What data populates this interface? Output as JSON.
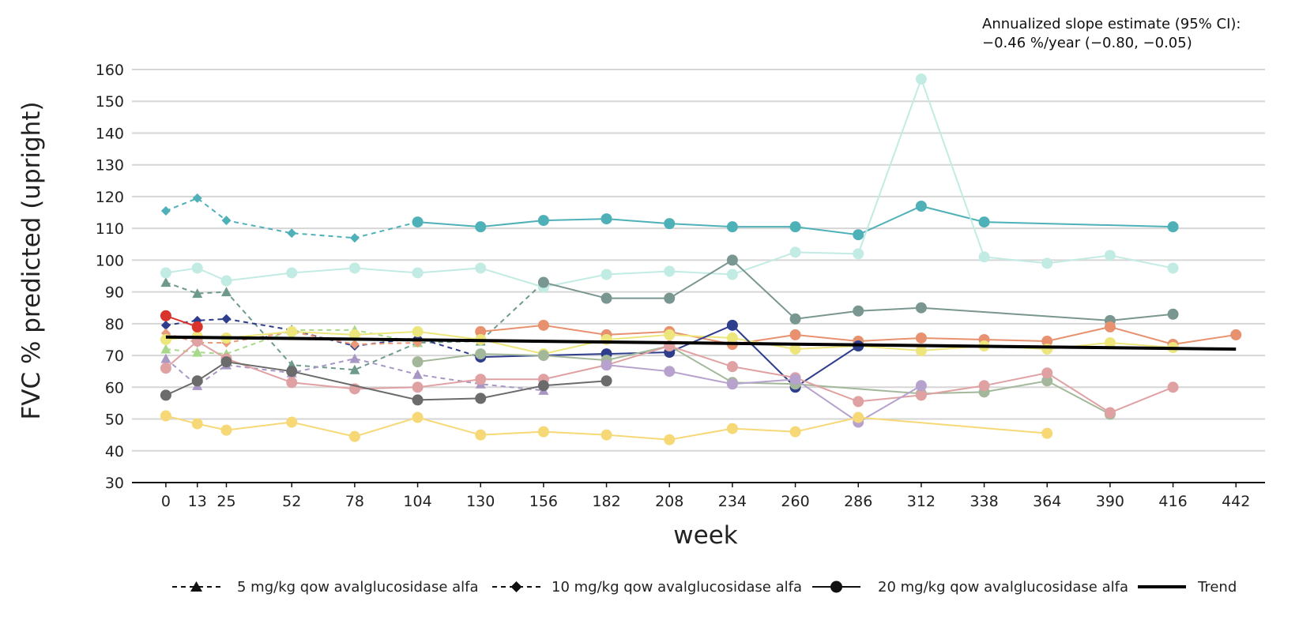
{
  "chart_data": {
    "type": "line",
    "title": "",
    "xlabel": "week",
    "ylabel": "FVC % predicted (upright)",
    "x_ticks": [
      0,
      13,
      25,
      52,
      78,
      104,
      130,
      156,
      182,
      208,
      234,
      260,
      286,
      312,
      338,
      364,
      390,
      416,
      442
    ],
    "y_ticks": [
      30,
      40,
      50,
      60,
      70,
      80,
      90,
      100,
      110,
      120,
      130,
      140,
      150,
      160
    ],
    "xlim": [
      -14,
      454
    ],
    "ylim": [
      30,
      160
    ],
    "grid": "horizontal",
    "legend_position": "bottom",
    "annotation": {
      "line1": "Annualized slope estimate (95% CI):",
      "line2": "−0.46 %/year (−0.80, −0.05)"
    },
    "legend": [
      {
        "label": "5 mg/kg qow avalglucosidase alfa",
        "marker": "triangle",
        "dash": "dashed"
      },
      {
        "label": "10 mg/kg qow avalglucosidase alfa",
        "marker": "diamond",
        "dash": "dashed"
      },
      {
        "label": "20 mg/kg qow avalglucosidase alfa",
        "marker": "circle",
        "dash": "solid"
      },
      {
        "label": "Trend",
        "marker": "none",
        "dash": "solid"
      }
    ],
    "trend": {
      "color": "#000000",
      "points": [
        [
          0,
          75.8
        ],
        [
          442,
          72.0
        ]
      ]
    },
    "series": [
      {
        "group": "5 mg/kg",
        "color": "#6e9a8c",
        "marker": "triangle",
        "dash": "dashed",
        "points": [
          [
            0,
            93
          ],
          [
            13,
            89.5
          ],
          [
            25,
            90
          ],
          [
            52,
            67
          ],
          [
            78,
            65.5
          ],
          [
            104,
            74
          ],
          [
            130,
            74.5
          ],
          [
            156,
            93
          ]
        ]
      },
      {
        "group": "5 mg/kg",
        "color": "#a8d88a",
        "marker": "triangle",
        "dash": "dashed",
        "points": [
          [
            0,
            72
          ],
          [
            13,
            71
          ],
          [
            25,
            70.5
          ],
          [
            52,
            78
          ],
          [
            78,
            78
          ],
          [
            104,
            74
          ]
        ]
      },
      {
        "group": "5 mg/kg",
        "color": "#a896c4",
        "marker": "triangle",
        "dash": "dashed",
        "points": [
          [
            0,
            69
          ],
          [
            13,
            60.5
          ],
          [
            25,
            67
          ],
          [
            52,
            64.5
          ],
          [
            78,
            69
          ],
          [
            104,
            64
          ],
          [
            130,
            61
          ],
          [
            156,
            59
          ]
        ]
      },
      {
        "group": "10 mg/kg",
        "color": "#4fb1b8",
        "marker": "diamond",
        "dash": "dashed",
        "points": [
          [
            0,
            115.5
          ],
          [
            13,
            119.5
          ],
          [
            25,
            112.5
          ],
          [
            52,
            108.5
          ],
          [
            78,
            107
          ],
          [
            104,
            112
          ]
        ]
      },
      {
        "group": "10 mg/kg",
        "color": "#2e3d8c",
        "marker": "diamond",
        "dash": "dashed",
        "points": [
          [
            0,
            79.5
          ],
          [
            13,
            81
          ],
          [
            25,
            81.5
          ],
          [
            52,
            78
          ],
          [
            78,
            73
          ],
          [
            104,
            75.5
          ],
          [
            130,
            69.5
          ]
        ]
      },
      {
        "group": "10 mg/kg",
        "color": "#e89a7a",
        "marker": "diamond",
        "dash": "dashed",
        "points": [
          [
            0,
            77
          ],
          [
            13,
            74
          ],
          [
            25,
            74
          ],
          [
            52,
            77.5
          ],
          [
            78,
            73.5
          ],
          [
            104,
            74
          ]
        ]
      },
      {
        "group": "20 mg/kg",
        "color": "#4fb1b8",
        "marker": "circle",
        "dash": "solid",
        "points": [
          [
            104,
            112
          ],
          [
            130,
            110.5
          ],
          [
            156,
            112.5
          ],
          [
            182,
            113
          ],
          [
            208,
            111.5
          ],
          [
            234,
            110.5
          ],
          [
            260,
            110.5
          ],
          [
            286,
            108
          ],
          [
            312,
            117
          ],
          [
            338,
            112
          ],
          [
            416,
            110.5
          ]
        ]
      },
      {
        "group": "20 mg/kg",
        "color": "#c2ebe4",
        "marker": "circle",
        "dash": "solid",
        "points": [
          [
            0,
            96
          ],
          [
            13,
            97.5
          ],
          [
            25,
            93.5
          ],
          [
            52,
            96
          ],
          [
            78,
            97.5
          ],
          [
            104,
            96
          ],
          [
            130,
            97.5
          ],
          [
            156,
            91.5
          ],
          [
            182,
            95.5
          ],
          [
            208,
            96.5
          ],
          [
            234,
            95.5
          ],
          [
            260,
            102.5
          ],
          [
            286,
            102
          ],
          [
            312,
            157
          ],
          [
            338,
            101
          ],
          [
            364,
            99
          ],
          [
            390,
            101.5
          ],
          [
            416,
            97.5
          ]
        ]
      },
      {
        "group": "20 mg/kg",
        "color": "#7a9690",
        "marker": "circle",
        "dash": "solid",
        "points": [
          [
            156,
            93
          ],
          [
            182,
            88
          ],
          [
            208,
            88
          ],
          [
            234,
            100
          ],
          [
            260,
            81.5
          ],
          [
            286,
            84
          ],
          [
            312,
            85
          ],
          [
            390,
            81
          ],
          [
            416,
            83
          ]
        ]
      },
      {
        "group": "20 mg/kg",
        "color": "#e8916e",
        "marker": "circle",
        "dash": "solid",
        "points": [
          [
            130,
            77.5
          ],
          [
            156,
            79.5
          ],
          [
            182,
            76.5
          ],
          [
            208,
            77.5
          ],
          [
            234,
            73.5
          ],
          [
            260,
            76.5
          ],
          [
            286,
            74.5
          ],
          [
            312,
            75.5
          ],
          [
            338,
            75
          ],
          [
            364,
            74.5
          ],
          [
            390,
            79
          ],
          [
            416,
            73.5
          ],
          [
            442,
            76.5
          ]
        ]
      },
      {
        "group": "20 mg/kg",
        "color": "#ede67c",
        "marker": "circle",
        "dash": "solid",
        "points": [
          [
            0,
            75
          ],
          [
            13,
            76
          ],
          [
            25,
            75.5
          ],
          [
            52,
            77.5
          ],
          [
            78,
            76.5
          ],
          [
            104,
            77.5
          ],
          [
            130,
            75
          ],
          [
            156,
            70.5
          ],
          [
            182,
            75
          ],
          [
            208,
            76.5
          ],
          [
            234,
            75.5
          ],
          [
            260,
            72
          ],
          [
            286,
            73
          ],
          [
            312,
            71.5
          ],
          [
            338,
            73
          ],
          [
            364,
            72
          ],
          [
            390,
            74
          ],
          [
            416,
            72.5
          ]
        ]
      },
      {
        "group": "20 mg/kg",
        "color": "#2e3d8c",
        "marker": "circle",
        "dash": "solid",
        "points": [
          [
            130,
            69.5
          ],
          [
            182,
            70.5
          ],
          [
            208,
            71
          ],
          [
            234,
            79.5
          ],
          [
            260,
            60
          ],
          [
            286,
            73
          ]
        ]
      },
      {
        "group": "20 mg/kg",
        "color": "#a3b89a",
        "marker": "circle",
        "dash": "solid",
        "points": [
          [
            104,
            68
          ],
          [
            130,
            70.5
          ],
          [
            156,
            70
          ],
          [
            182,
            68.5
          ],
          [
            208,
            73
          ],
          [
            234,
            61.5
          ],
          [
            260,
            61
          ],
          [
            312,
            58
          ],
          [
            338,
            58.5
          ],
          [
            364,
            62
          ],
          [
            390,
            51.5
          ]
        ]
      },
      {
        "group": "20 mg/kg",
        "color": "#e0a1a3",
        "marker": "circle",
        "dash": "solid",
        "points": [
          [
            0,
            66
          ],
          [
            13,
            74.5
          ],
          [
            25,
            69
          ],
          [
            52,
            61.5
          ],
          [
            78,
            59.5
          ],
          [
            104,
            60
          ],
          [
            130,
            62.5
          ],
          [
            156,
            62.5
          ],
          [
            182,
            67
          ],
          [
            208,
            73
          ],
          [
            234,
            66.5
          ],
          [
            260,
            63
          ],
          [
            286,
            55.5
          ],
          [
            312,
            57.5
          ],
          [
            338,
            60.5
          ],
          [
            364,
            64.5
          ],
          [
            390,
            52
          ],
          [
            416,
            60
          ]
        ]
      },
      {
        "group": "20 mg/kg",
        "color": "#b6a2cc",
        "marker": "circle",
        "dash": "solid",
        "points": [
          [
            182,
            67
          ],
          [
            208,
            65
          ],
          [
            234,
            61
          ],
          [
            260,
            62.5
          ],
          [
            286,
            49
          ],
          [
            312,
            60.5
          ]
        ]
      },
      {
        "group": "20 mg/kg",
        "color": "#6b6b6b",
        "marker": "circle",
        "dash": "solid",
        "points": [
          [
            0,
            57.5
          ],
          [
            13,
            62
          ],
          [
            25,
            68
          ],
          [
            52,
            65
          ],
          [
            104,
            56
          ],
          [
            130,
            56.5
          ],
          [
            156,
            60.5
          ],
          [
            182,
            62
          ]
        ]
      },
      {
        "group": "20 mg/kg",
        "color": "#f7d876",
        "marker": "circle",
        "dash": "solid",
        "points": [
          [
            0,
            51
          ],
          [
            13,
            48.5
          ],
          [
            25,
            46.5
          ],
          [
            52,
            49
          ],
          [
            78,
            44.5
          ],
          [
            104,
            50.5
          ],
          [
            130,
            45
          ],
          [
            156,
            46
          ],
          [
            182,
            45
          ],
          [
            208,
            43.5
          ],
          [
            234,
            47
          ],
          [
            260,
            46
          ],
          [
            286,
            50.5
          ],
          [
            364,
            45.5
          ]
        ]
      },
      {
        "group": "20 mg/kg",
        "color": "#d9342b",
        "marker": "circle",
        "dash": "solid",
        "points": [
          [
            0,
            82.5
          ],
          [
            13,
            79
          ]
        ]
      }
    ]
  }
}
